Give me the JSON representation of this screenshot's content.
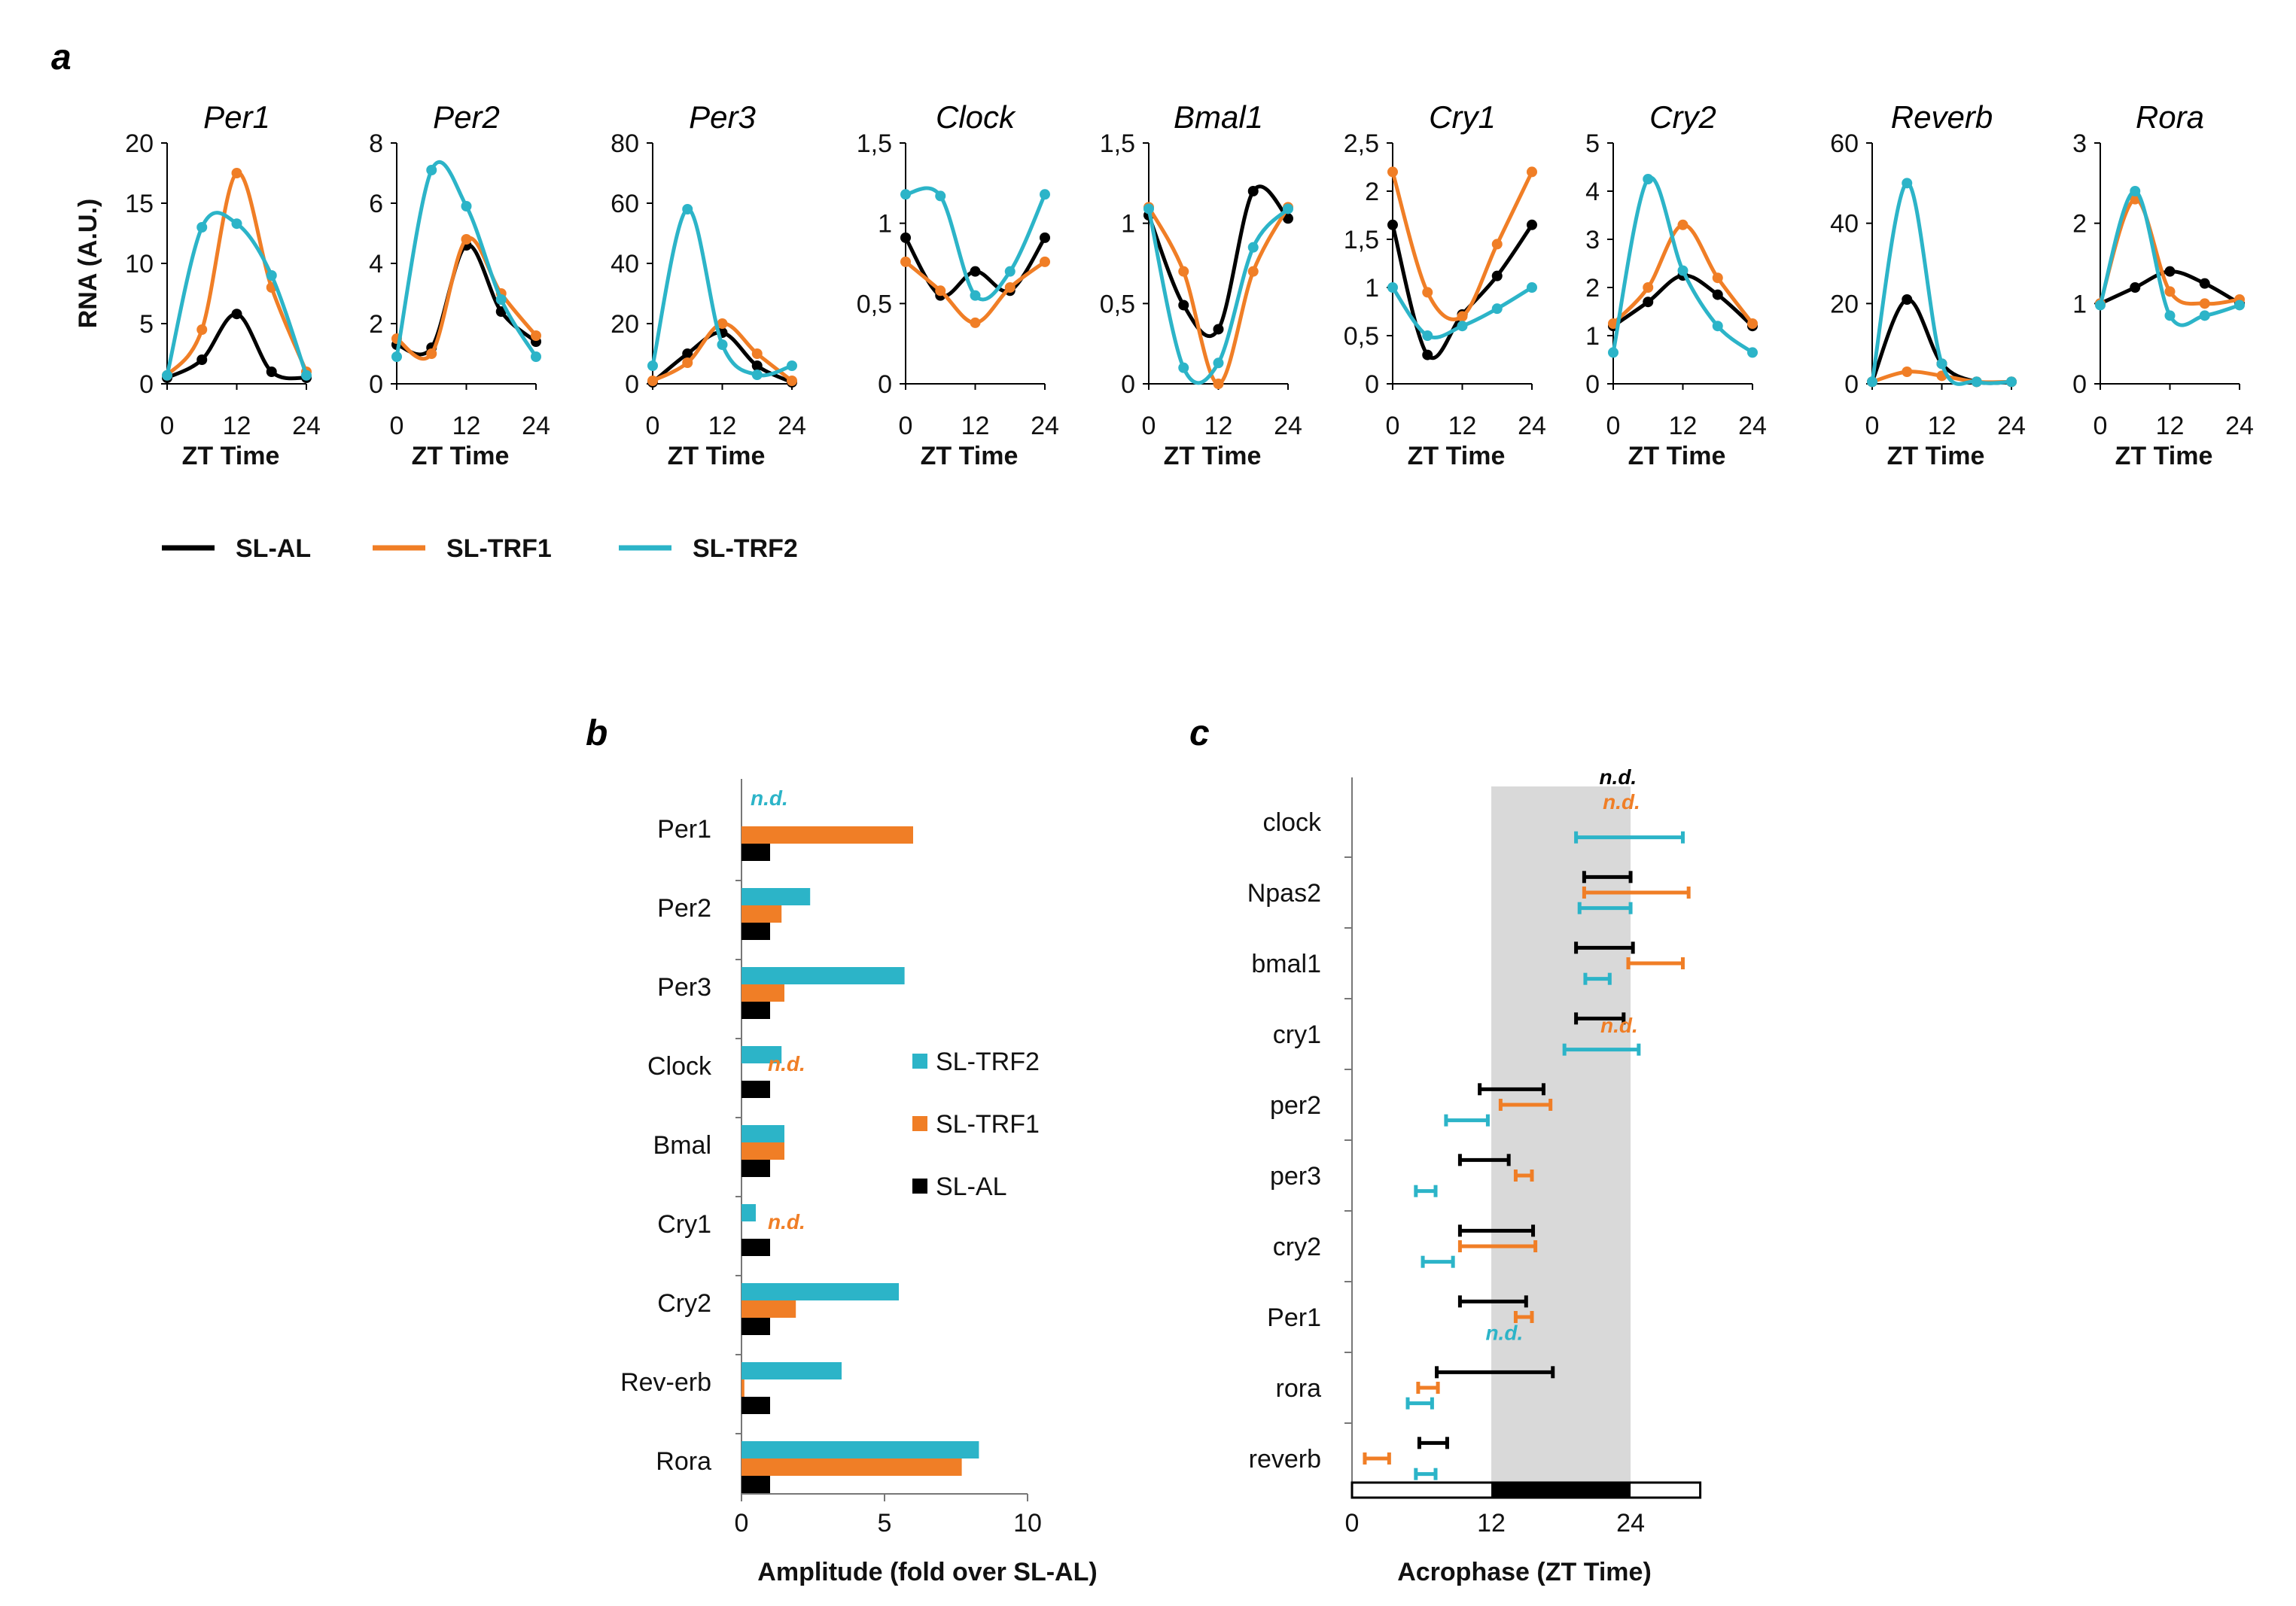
{
  "colors": {
    "SL-AL": "#000000",
    "SL-TRF1": "#F07E26",
    "SL-TRF2": "#2CB4C8",
    "shade": "#D9D9D9"
  },
  "panel_labels": {
    "a": "a",
    "b": "b",
    "c": "c"
  },
  "chart_data": [
    {
      "panel": "a",
      "type": "line",
      "ylabel": "RNA (A.U.)",
      "xlabel": "ZT Time",
      "x_ticks": [
        "0",
        "12",
        "24"
      ],
      "legend": [
        "SL-AL",
        "SL-TRF1",
        "SL-TRF2"
      ],
      "genes": [
        {
          "name": "Per1",
          "ymax": 20,
          "yticks": [
            "0",
            "5",
            "10",
            "15",
            "20"
          ],
          "yvals": [
            0,
            5,
            10,
            15,
            20
          ],
          "series": [
            {
              "name": "SL-AL",
              "x": [
                0,
                6,
                12,
                18,
                24
              ],
              "y": [
                0.5,
                2,
                5.8,
                1,
                0.5
              ]
            },
            {
              "name": "SL-TRF1",
              "x": [
                0,
                6,
                12,
                18,
                24
              ],
              "y": [
                0.7,
                4.5,
                17.5,
                8,
                1
              ]
            },
            {
              "name": "SL-TRF2",
              "x": [
                0,
                6,
                12,
                18,
                24
              ],
              "y": [
                0.7,
                13,
                13.3,
                9,
                0.7
              ]
            }
          ]
        },
        {
          "name": "Per2",
          "ymax": 8,
          "yticks": [
            "0",
            "2",
            "4",
            "6",
            "8"
          ],
          "yvals": [
            0,
            2,
            4,
            6,
            8
          ],
          "series": [
            {
              "name": "SL-AL",
              "x": [
                0,
                6,
                12,
                18,
                24
              ],
              "y": [
                1.3,
                1.2,
                4.6,
                2.4,
                1.4
              ]
            },
            {
              "name": "SL-TRF1",
              "x": [
                0,
                6,
                12,
                18,
                24
              ],
              "y": [
                1.5,
                1.0,
                4.8,
                3,
                1.6
              ]
            },
            {
              "name": "SL-TRF2",
              "x": [
                0,
                6,
                12,
                18,
                24
              ],
              "y": [
                0.9,
                7.1,
                5.9,
                2.8,
                0.9
              ]
            }
          ]
        },
        {
          "name": "Per3",
          "ymax": 80,
          "yticks": [
            "0",
            "20",
            "40",
            "60",
            "80"
          ],
          "yvals": [
            0,
            20,
            40,
            60,
            80
          ],
          "series": [
            {
              "name": "SL-AL",
              "x": [
                0,
                6,
                12,
                18,
                24
              ],
              "y": [
                0.5,
                10,
                17,
                6,
                0.5
              ]
            },
            {
              "name": "SL-TRF1",
              "x": [
                0,
                6,
                12,
                18,
                24
              ],
              "y": [
                1,
                7,
                20,
                10,
                1
              ]
            },
            {
              "name": "SL-TRF2",
              "x": [
                0,
                6,
                12,
                18,
                24
              ],
              "y": [
                6,
                58,
                13,
                3,
                6
              ]
            }
          ]
        },
        {
          "name": "Clock",
          "ymax": 1.5,
          "yticks": [
            "0",
            "0,5",
            "1",
            "1,5"
          ],
          "yvals": [
            0,
            0.5,
            1,
            1.5
          ],
          "series": [
            {
              "name": "SL-AL",
              "x": [
                0,
                6,
                12,
                18,
                24
              ],
              "y": [
                0.91,
                0.55,
                0.7,
                0.58,
                0.91
              ]
            },
            {
              "name": "SL-TRF1",
              "x": [
                0,
                6,
                12,
                18,
                24
              ],
              "y": [
                0.76,
                0.58,
                0.38,
                0.6,
                0.76
              ]
            },
            {
              "name": "SL-TRF2",
              "x": [
                0,
                6,
                12,
                18,
                24
              ],
              "y": [
                1.18,
                1.17,
                0.55,
                0.7,
                1.18
              ]
            }
          ]
        },
        {
          "name": "Bmal1",
          "ymax": 1.5,
          "yticks": [
            "0",
            "0,5",
            "1",
            "1,5"
          ],
          "yvals": [
            0,
            0.5,
            1,
            1.5
          ],
          "series": [
            {
              "name": "SL-AL",
              "x": [
                0,
                6,
                12,
                18,
                24
              ],
              "y": [
                1.05,
                0.49,
                0.34,
                1.2,
                1.03
              ]
            },
            {
              "name": "SL-TRF1",
              "x": [
                0,
                6,
                12,
                18,
                24
              ],
              "y": [
                1.1,
                0.7,
                0.0,
                0.7,
                1.1
              ]
            },
            {
              "name": "SL-TRF2",
              "x": [
                0,
                6,
                12,
                18,
                24
              ],
              "y": [
                1.09,
                0.1,
                0.13,
                0.85,
                1.09
              ]
            }
          ]
        },
        {
          "name": "Cry1",
          "ymax": 2.5,
          "yticks": [
            "0",
            "0,5",
            "1",
            "1,5",
            "2",
            "2,5"
          ],
          "yvals": [
            0,
            0.5,
            1,
            1.5,
            2,
            2.5
          ],
          "series": [
            {
              "name": "SL-AL",
              "x": [
                0,
                6,
                12,
                18,
                24
              ],
              "y": [
                1.65,
                0.3,
                0.72,
                1.12,
                1.65
              ]
            },
            {
              "name": "SL-TRF1",
              "x": [
                0,
                6,
                12,
                18,
                24
              ],
              "y": [
                2.2,
                0.95,
                0.7,
                1.45,
                2.2
              ]
            },
            {
              "name": "SL-TRF2",
              "x": [
                0,
                6,
                12,
                18,
                24
              ],
              "y": [
                1.0,
                0.5,
                0.6,
                0.78,
                1.0
              ]
            }
          ]
        },
        {
          "name": "Cry2",
          "ymax": 5,
          "yticks": [
            "0",
            "1",
            "2",
            "3",
            "4",
            "5"
          ],
          "yvals": [
            0,
            1,
            2,
            3,
            4,
            5
          ],
          "series": [
            {
              "name": "SL-AL",
              "x": [
                0,
                6,
                12,
                18,
                24
              ],
              "y": [
                1.2,
                1.7,
                2.25,
                1.85,
                1.2
              ]
            },
            {
              "name": "SL-TRF1",
              "x": [
                0,
                6,
                12,
                18,
                24
              ],
              "y": [
                1.25,
                2.0,
                3.3,
                2.2,
                1.25
              ]
            },
            {
              "name": "SL-TRF2",
              "x": [
                0,
                6,
                12,
                18,
                24
              ],
              "y": [
                0.65,
                4.25,
                2.35,
                1.2,
                0.65
              ]
            }
          ]
        },
        {
          "name": "Reverb",
          "ymax": 60,
          "yticks": [
            "0",
            "20",
            "40",
            "60"
          ],
          "yvals": [
            0,
            20,
            40,
            60
          ],
          "series": [
            {
              "name": "SL-AL",
              "x": [
                0,
                6,
                12,
                18,
                24
              ],
              "y": [
                0.5,
                21,
                5,
                0.5,
                0.5
              ]
            },
            {
              "name": "SL-TRF1",
              "x": [
                0,
                6,
                12,
                18,
                24
              ],
              "y": [
                0.5,
                3,
                2,
                0.5,
                0.5
              ]
            },
            {
              "name": "SL-TRF2",
              "x": [
                0,
                6,
                12,
                18,
                24
              ],
              "y": [
                0.5,
                50,
                5,
                0.5,
                0.5
              ]
            }
          ]
        },
        {
          "name": "Rora",
          "ymax": 3,
          "yticks": [
            "0",
            "1",
            "2",
            "3"
          ],
          "yvals": [
            0,
            1,
            2,
            3
          ],
          "series": [
            {
              "name": "SL-AL",
              "x": [
                0,
                6,
                12,
                18,
                24
              ],
              "y": [
                1.0,
                1.2,
                1.4,
                1.25,
                1.0
              ]
            },
            {
              "name": "SL-TRF1",
              "x": [
                0,
                6,
                12,
                18,
                24
              ],
              "y": [
                1.0,
                2.3,
                1.15,
                1.0,
                1.05
              ]
            },
            {
              "name": "SL-TRF2",
              "x": [
                0,
                6,
                12,
                18,
                24
              ],
              "y": [
                0.98,
                2.4,
                0.85,
                0.85,
                0.98
              ]
            }
          ]
        }
      ]
    },
    {
      "panel": "b",
      "type": "bar",
      "orientation": "horizontal",
      "xlabel": "Amplitude (fold over SL-AL)",
      "xlim": [
        0,
        10
      ],
      "x_ticks": [
        "0",
        "5",
        "10"
      ],
      "categories": [
        "Per1",
        "Per2",
        "Per3",
        "Clock",
        "Bmal",
        "Cry1",
        "Cry2",
        "Rev-erb",
        "Rora"
      ],
      "series": [
        {
          "name": "SL-TRF2",
          "values": [
            null,
            2.4,
            5.7,
            1.4,
            1.5,
            0.5,
            5.5,
            3.5,
            8.3
          ]
        },
        {
          "name": "SL-TRF1",
          "values": [
            6.0,
            1.4,
            1.5,
            null,
            1.5,
            null,
            1.9,
            0.1,
            7.7
          ]
        },
        {
          "name": "SL-AL",
          "values": [
            1,
            1,
            1,
            1,
            1,
            1,
            1,
            1,
            1
          ]
        }
      ],
      "annotations": [
        {
          "text": "n.d.",
          "category": "Per1",
          "series": "SL-TRF2"
        },
        {
          "text": "n.d.",
          "category": "Clock",
          "series": "SL-TRF1"
        },
        {
          "text": "n.d.",
          "category": "Cry1",
          "series": "SL-TRF1"
        }
      ],
      "legend": [
        "SL-TRF2",
        "SL-TRF1",
        "SL-AL"
      ]
    },
    {
      "panel": "c",
      "type": "errorbar",
      "xlabel": "Acrophase (ZT Time)",
      "xlim": [
        0,
        30
      ],
      "x_ticks": [
        "0",
        "12",
        "24"
      ],
      "dark_phase": [
        12,
        24
      ],
      "categories": [
        "clock",
        "Npas2",
        "bmal1",
        "cry1",
        "per2",
        "per3",
        "cry2",
        "Per1",
        "rora",
        "reverb"
      ],
      "series": [
        {
          "name": "SL-AL",
          "intervals": [
            null,
            [
              20,
              24
            ],
            [
              19.3,
              24.2
            ],
            [
              19.3,
              23.4
            ],
            [
              11,
              16.5
            ],
            [
              9.3,
              13.5
            ],
            [
              9.3,
              15.6
            ],
            [
              9.3,
              15
            ],
            [
              7.3,
              17.3
            ],
            [
              5.8,
              8.2
            ]
          ]
        },
        {
          "name": "SL-TRF1",
          "intervals": [
            null,
            [
              20,
              29
            ],
            [
              23.8,
              28.5
            ],
            null,
            [
              12.8,
              17.1
            ],
            [
              14.1,
              15.5
            ],
            [
              9.3,
              15.8
            ],
            [
              14.1,
              15.5
            ],
            [
              5.7,
              7.4
            ],
            [
              1.1,
              3.2
            ]
          ]
        },
        {
          "name": "SL-TRF2",
          "intervals": [
            [
              19.3,
              28.5
            ],
            [
              19.6,
              24
            ],
            [
              20.1,
              22.2
            ],
            [
              18.3,
              24.7
            ],
            [
              8.1,
              11.7
            ],
            [
              5.5,
              7.2
            ],
            [
              6.1,
              8.7
            ],
            null,
            [
              4.8,
              6.9
            ],
            [
              5.5,
              7.2
            ]
          ]
        }
      ],
      "annotations": [
        {
          "text": "n.d.",
          "category": "clock",
          "series": "SL-AL"
        },
        {
          "text": "n.d.",
          "category": "clock",
          "series": "SL-TRF1"
        },
        {
          "text": "n.d.",
          "category": "cry1",
          "series": "SL-TRF1"
        },
        {
          "text": "n.d.",
          "category": "Per1",
          "series": "SL-TRF2"
        }
      ]
    }
  ]
}
